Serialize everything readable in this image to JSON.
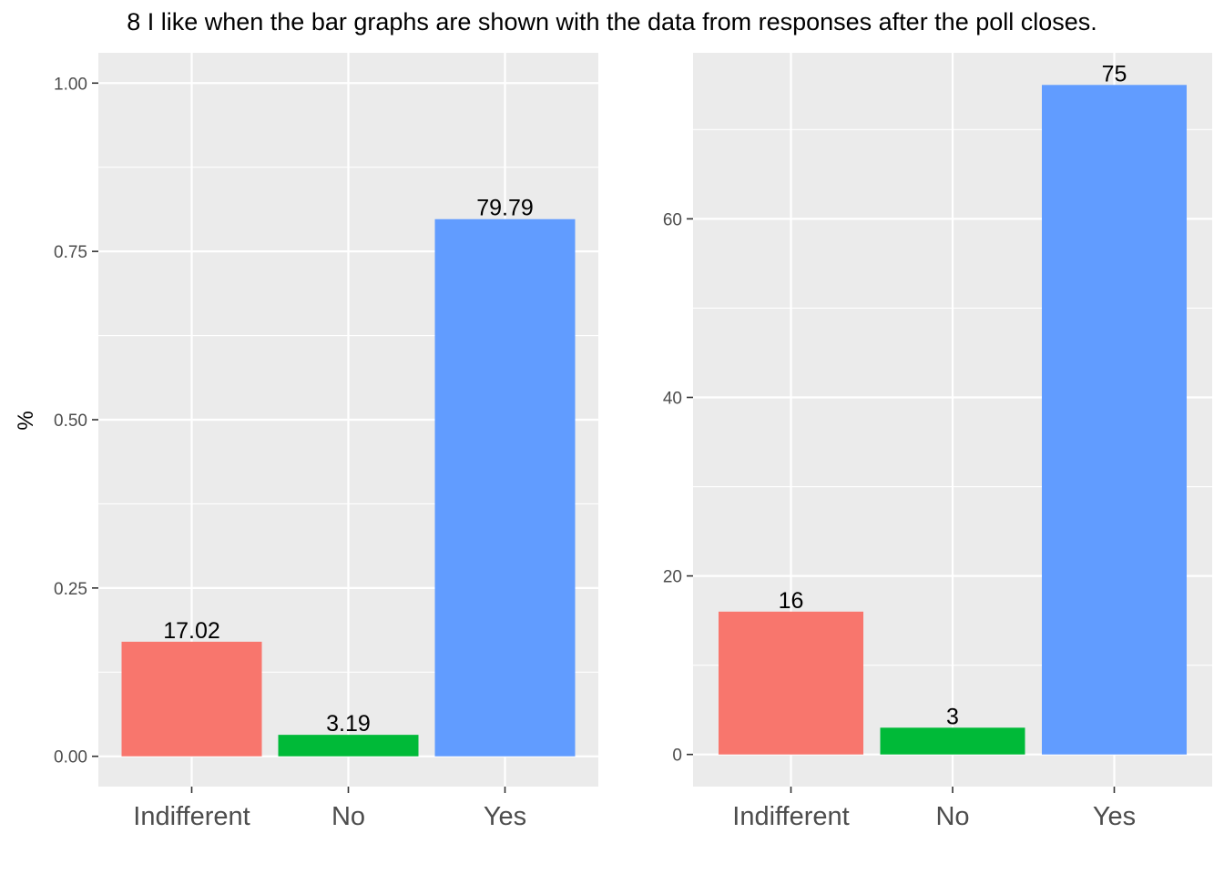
{
  "title": "8 I like when the bar graphs are shown with the data from responses after the poll closes.",
  "colors": {
    "panel_background": "#ebebeb",
    "grid_line": "#ffffff",
    "tick_text": "#4d4d4d",
    "axis_tick": "#333333",
    "Indifferent": "#f8766d",
    "No": "#00ba38",
    "Yes": "#619cff"
  },
  "chart_data": [
    {
      "type": "bar",
      "title": "",
      "xlabel": "",
      "ylabel": "%",
      "categories": [
        "Indifferent",
        "No",
        "Yes"
      ],
      "values": [
        0.1702,
        0.0319,
        0.7979
      ],
      "labels": [
        "17.02",
        "3.19",
        "79.79"
      ],
      "ylim": [
        -0.045,
        1.045
      ],
      "yticks": [
        0,
        0.25,
        0.5,
        0.75,
        1
      ],
      "ytick_labels": [
        "0.00",
        "0.25",
        "0.50",
        "0.75",
        "1.00"
      ],
      "grid": true,
      "legend": "none"
    },
    {
      "type": "bar",
      "title": "",
      "xlabel": "",
      "ylabel": "",
      "categories": [
        "Indifferent",
        "No",
        "Yes"
      ],
      "values": [
        16,
        3,
        75
      ],
      "labels": [
        "16",
        "3",
        "75"
      ],
      "ylim": [
        -3.6,
        78.6
      ],
      "yticks": [
        0,
        20,
        40,
        60
      ],
      "ytick_labels": [
        "0",
        "20",
        "40",
        "60"
      ],
      "grid": true,
      "legend": "none"
    }
  ]
}
